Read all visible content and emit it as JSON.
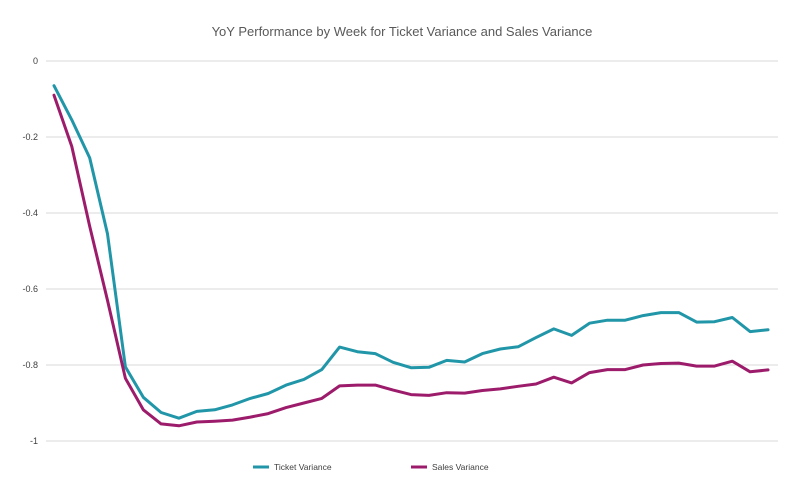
{
  "chart_data": {
    "type": "line",
    "title": "YoY Performance by Week  for Ticket Variance and Sales Variance",
    "xlabel": "",
    "ylabel": "",
    "ylim": [
      -1,
      0
    ],
    "yticks": [
      0,
      -0.2,
      -0.4,
      -0.6,
      -0.8,
      -1
    ],
    "ytick_labels": [
      "0",
      "-0.2",
      "-0.4",
      "-0.6",
      "-0.8",
      "-1"
    ],
    "grid": true,
    "legend_position": "bottom",
    "x": [
      1,
      2,
      3,
      4,
      5,
      6,
      7,
      8,
      9,
      10,
      11,
      12,
      13,
      14,
      15,
      16,
      17,
      18,
      19,
      20,
      21,
      22,
      23,
      24,
      25,
      26,
      27,
      28,
      29,
      30,
      31,
      32,
      33,
      34,
      35,
      36,
      37,
      38,
      39,
      40,
      41
    ],
    "series": [
      {
        "name": "Ticket Variance",
        "color": "#2196A8",
        "values": [
          -0.065,
          -0.155,
          -0.255,
          -0.455,
          -0.805,
          -0.885,
          -0.925,
          -0.94,
          -0.922,
          -0.918,
          -0.905,
          -0.888,
          -0.875,
          -0.853,
          -0.838,
          -0.812,
          -0.753,
          -0.765,
          -0.77,
          -0.793,
          -0.807,
          -0.806,
          -0.788,
          -0.792,
          -0.77,
          -0.758,
          -0.752,
          -0.728,
          -0.705,
          -0.722,
          -0.69,
          -0.682,
          -0.682,
          -0.67,
          -0.662,
          -0.662,
          -0.687,
          -0.686,
          -0.675,
          -0.712,
          -0.707
        ]
      },
      {
        "name": "Sales Variance",
        "color": "#9C1C6B",
        "values": [
          -0.09,
          -0.225,
          -0.435,
          -0.63,
          -0.835,
          -0.918,
          -0.955,
          -0.96,
          -0.95,
          -0.948,
          -0.945,
          -0.937,
          -0.928,
          -0.912,
          -0.9,
          -0.888,
          -0.855,
          -0.853,
          -0.853,
          -0.866,
          -0.878,
          -0.88,
          -0.873,
          -0.874,
          -0.867,
          -0.863,
          -0.856,
          -0.85,
          -0.832,
          -0.847,
          -0.82,
          -0.812,
          -0.812,
          -0.8,
          -0.796,
          -0.795,
          -0.803,
          -0.803,
          -0.79,
          -0.818,
          -0.813
        ]
      }
    ]
  }
}
